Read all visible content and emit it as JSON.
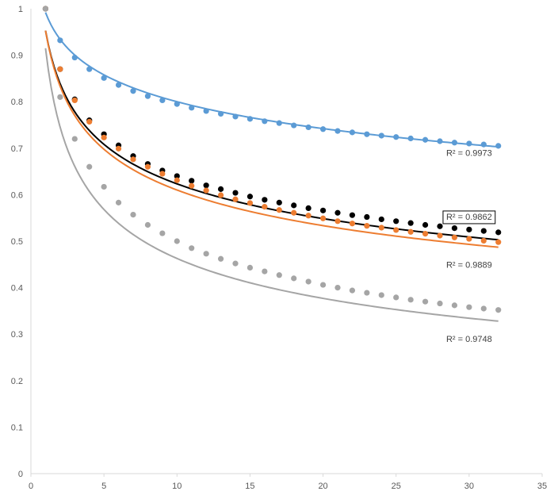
{
  "chart_data": {
    "type": "scatter",
    "title": "",
    "xlabel": "",
    "ylabel": "",
    "xlim": [
      0,
      35
    ],
    "ylim": [
      0,
      1
    ],
    "x_ticks": [
      0,
      5,
      10,
      15,
      20,
      25,
      30,
      35
    ],
    "y_ticks": [
      0,
      0.1,
      0.2,
      0.3,
      0.4,
      0.5,
      0.6,
      0.7,
      0.8,
      0.9,
      1
    ],
    "grid": false,
    "legend": "none",
    "series": [
      {
        "color": "#5b9bd5",
        "x": [
          1,
          2,
          3,
          4,
          5,
          6,
          7,
          8,
          9,
          10,
          11,
          12,
          13,
          14,
          15,
          16,
          17,
          18,
          19,
          20,
          21,
          22,
          23,
          24,
          25,
          26,
          27,
          28,
          29,
          30,
          31,
          32
        ],
        "y": [
          1.0,
          0.932,
          0.895,
          0.87,
          0.851,
          0.836,
          0.823,
          0.812,
          0.803,
          0.795,
          0.787,
          0.78,
          0.774,
          0.768,
          0.763,
          0.758,
          0.754,
          0.749,
          0.745,
          0.741,
          0.737,
          0.734,
          0.73,
          0.727,
          0.724,
          0.721,
          0.718,
          0.715,
          0.712,
          0.71,
          0.708,
          0.705
        ],
        "trendline": {
          "type": "log",
          "x_start": 1,
          "x_end": 32,
          "y_start": 0.992,
          "y_end": 0.703
        },
        "r_squared": "R² = 0.9973",
        "r_squared_boxed": false
      },
      {
        "color": "#000000",
        "x": [
          1,
          2,
          3,
          4,
          5,
          6,
          7,
          8,
          9,
          10,
          11,
          12,
          13,
          14,
          15,
          16,
          17,
          18,
          19,
          20,
          21,
          22,
          23,
          24,
          25,
          26,
          27,
          28,
          29,
          30,
          31,
          32
        ],
        "y": [
          1.0,
          0.87,
          0.805,
          0.76,
          0.73,
          0.706,
          0.683,
          0.666,
          0.652,
          0.64,
          0.63,
          0.62,
          0.612,
          0.604,
          0.596,
          0.589,
          0.583,
          0.577,
          0.571,
          0.566,
          0.561,
          0.556,
          0.552,
          0.547,
          0.543,
          0.539,
          0.535,
          0.532,
          0.528,
          0.525,
          0.522,
          0.519
        ],
        "trendline": {
          "type": "power",
          "x_start": 1,
          "x_end": 32,
          "y_start": 0.953,
          "y_end": 0.503
        },
        "r_squared": "R² = 0.9862",
        "r_squared_boxed": true
      },
      {
        "color": "#ed7d31",
        "x": [
          1,
          2,
          3,
          4,
          5,
          6,
          7,
          8,
          9,
          10,
          11,
          12,
          13,
          14,
          15,
          16,
          17,
          18,
          19,
          20,
          21,
          22,
          23,
          24,
          25,
          26,
          27,
          28,
          29,
          30,
          31,
          32
        ],
        "y": [
          1.0,
          0.87,
          0.803,
          0.757,
          0.723,
          0.699,
          0.676,
          0.66,
          0.645,
          0.631,
          0.619,
          0.609,
          0.599,
          0.59,
          0.582,
          0.574,
          0.567,
          0.561,
          0.555,
          0.549,
          0.543,
          0.538,
          0.533,
          0.529,
          0.524,
          0.52,
          0.516,
          0.512,
          0.508,
          0.505,
          0.501,
          0.498
        ],
        "trendline": {
          "type": "power",
          "x_start": 1,
          "x_end": 32,
          "y_start": 0.953,
          "y_end": 0.487
        },
        "r_squared": "R² = 0.9889",
        "r_squared_boxed": false
      },
      {
        "color": "#a5a5a5",
        "x": [
          1,
          2,
          3,
          4,
          5,
          6,
          7,
          8,
          9,
          10,
          11,
          12,
          13,
          14,
          15,
          16,
          17,
          18,
          19,
          20,
          21,
          22,
          23,
          24,
          25,
          26,
          27,
          28,
          29,
          30,
          31,
          32
        ],
        "y": [
          1.0,
          0.81,
          0.72,
          0.66,
          0.617,
          0.583,
          0.557,
          0.535,
          0.517,
          0.5,
          0.485,
          0.473,
          0.462,
          0.452,
          0.443,
          0.435,
          0.427,
          0.42,
          0.413,
          0.406,
          0.4,
          0.394,
          0.389,
          0.384,
          0.379,
          0.374,
          0.37,
          0.366,
          0.362,
          0.358,
          0.355,
          0.352
        ],
        "trendline": {
          "type": "power",
          "x_start": 1,
          "x_end": 32,
          "y_start": 0.915,
          "y_end": 0.328
        },
        "r_squared": "R² = 0.9748",
        "r_squared_boxed": false
      }
    ],
    "annotation_positions": [
      {
        "x": 30,
        "y": 0.69
      },
      {
        "x": 30,
        "y": 0.553
      },
      {
        "x": 30,
        "y": 0.45
      },
      {
        "x": 30,
        "y": 0.29
      }
    ]
  }
}
